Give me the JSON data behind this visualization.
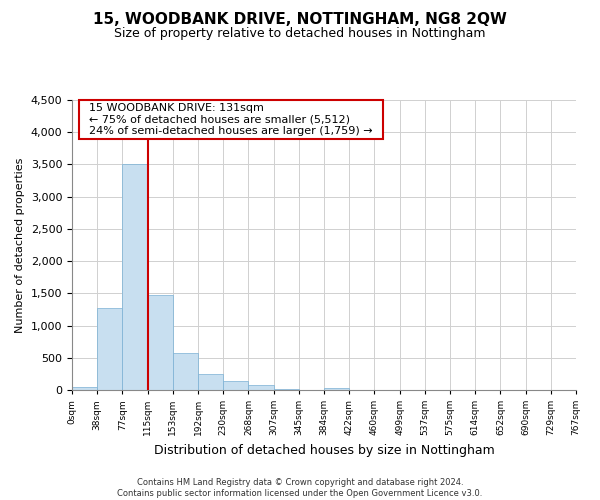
{
  "title": "15, WOODBANK DRIVE, NOTTINGHAM, NG8 2QW",
  "subtitle": "Size of property relative to detached houses in Nottingham",
  "xlabel": "Distribution of detached houses by size in Nottingham",
  "ylabel": "Number of detached properties",
  "bin_labels": [
    "0sqm",
    "38sqm",
    "77sqm",
    "115sqm",
    "153sqm",
    "192sqm",
    "230sqm",
    "268sqm",
    "307sqm",
    "345sqm",
    "384sqm",
    "422sqm",
    "460sqm",
    "499sqm",
    "537sqm",
    "575sqm",
    "614sqm",
    "652sqm",
    "690sqm",
    "729sqm",
    "767sqm"
  ],
  "bar_values": [
    50,
    1280,
    3500,
    1470,
    580,
    250,
    140,
    70,
    20,
    0,
    30,
    0,
    0,
    0,
    0,
    0,
    0,
    0,
    0,
    0
  ],
  "bar_color": "#c8dff0",
  "bar_edge_color": "#7ab0d4",
  "vline_x": 3,
  "vline_color": "#cc0000",
  "ylim": [
    0,
    4500
  ],
  "yticks": [
    0,
    500,
    1000,
    1500,
    2000,
    2500,
    3000,
    3500,
    4000,
    4500
  ],
  "annotation_title": "15 WOODBANK DRIVE: 131sqm",
  "annotation_line1": "← 75% of detached houses are smaller (5,512)",
  "annotation_line2": "24% of semi-detached houses are larger (1,759) →",
  "annotation_box_color": "#cc0000",
  "footer_line1": "Contains HM Land Registry data © Crown copyright and database right 2024.",
  "footer_line2": "Contains public sector information licensed under the Open Government Licence v3.0.",
  "background_color": "#ffffff",
  "grid_color": "#d0d0d0"
}
